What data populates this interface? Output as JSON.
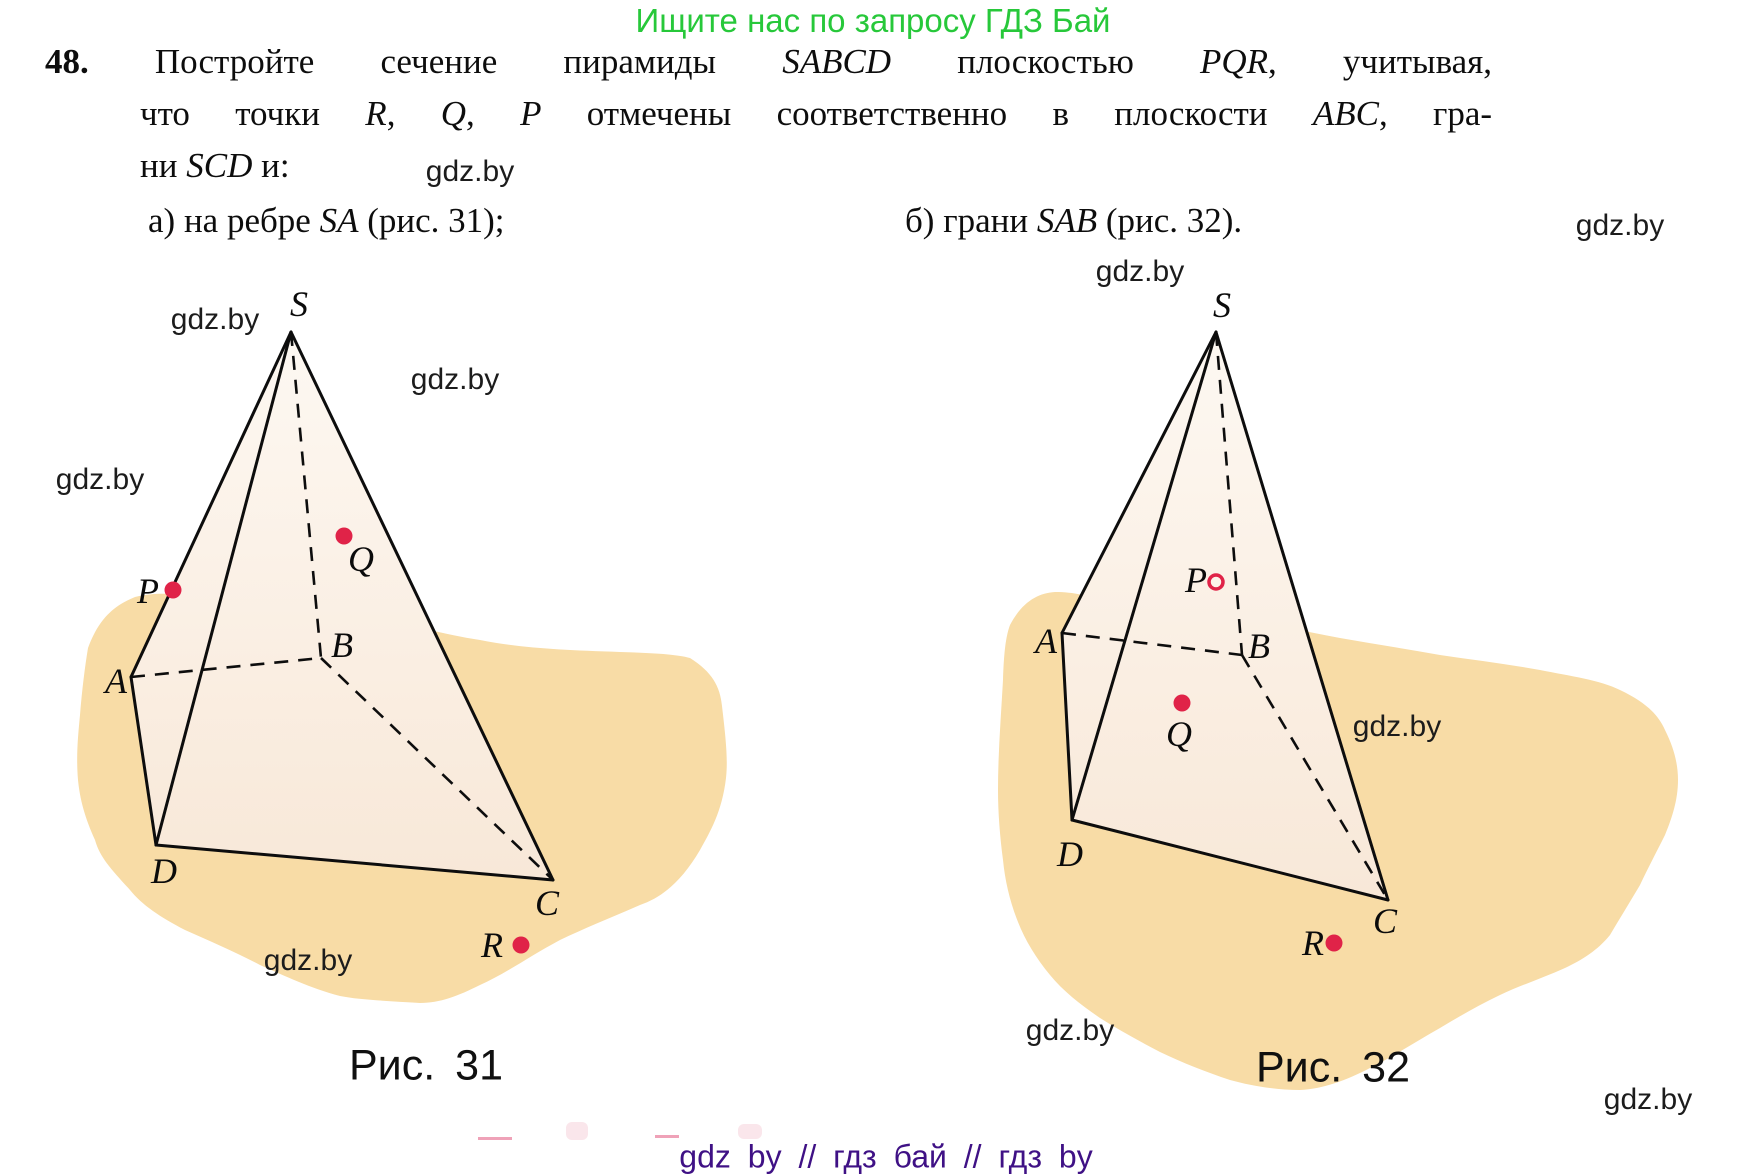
{
  "banner": {
    "text": "Ищите нас по запросу ГДЗ Бай"
  },
  "watermark_text": "gdz.by",
  "problem": {
    "number": "48.",
    "lines": {
      "l1": [
        {
          "t": " Постройте сечение пирамиды "
        },
        {
          "t": "SABCD",
          "i": true
        },
        {
          "t": " плоскостью "
        },
        {
          "t": "PQR",
          "i": true
        },
        {
          "t": ", учитывая,"
        }
      ],
      "l2": [
        {
          "t": "что точки "
        },
        {
          "t": "R",
          "i": true
        },
        {
          "t": ", "
        },
        {
          "t": "Q",
          "i": true
        },
        {
          "t": ", "
        },
        {
          "t": "P",
          "i": true
        },
        {
          "t": " отмечены соответственно в плоскости "
        },
        {
          "t": "ABC",
          "i": true
        },
        {
          "t": ", гра-"
        }
      ],
      "l3": [
        {
          "t": "ни "
        },
        {
          "t": "SCD",
          "i": true
        },
        {
          "t": " и:"
        }
      ],
      "item_a": [
        {
          "t": "а) на ребре "
        },
        {
          "t": "SA",
          "i": true
        },
        {
          "t": " (рис. 31);"
        }
      ],
      "item_b": [
        {
          "t": "б) грани "
        },
        {
          "t": "SAB",
          "i": true
        },
        {
          "t": " (рис. 32)."
        }
      ]
    }
  },
  "fig31": {
    "labels": {
      "S": "S",
      "A": "A",
      "B": "B",
      "C": "C",
      "D": "D",
      "P": "P",
      "Q": "Q",
      "R": "R"
    },
    "caption": {
      "label": "Рис.",
      "number": "31"
    }
  },
  "fig32": {
    "labels": {
      "S": "S",
      "A": "A",
      "B": "B",
      "C": "C",
      "D": "D",
      "P": "P",
      "Q": "Q",
      "R": "R"
    },
    "caption": {
      "label": "Рис.",
      "number": "32"
    }
  },
  "footer": {
    "text": "gdz by  //  гдз бай  //  гдз by"
  },
  "colors": {
    "banner_green": "#27c83a",
    "footer_purple": "#3f1185",
    "dot": "#e02348",
    "blob": "#f8dca6"
  }
}
